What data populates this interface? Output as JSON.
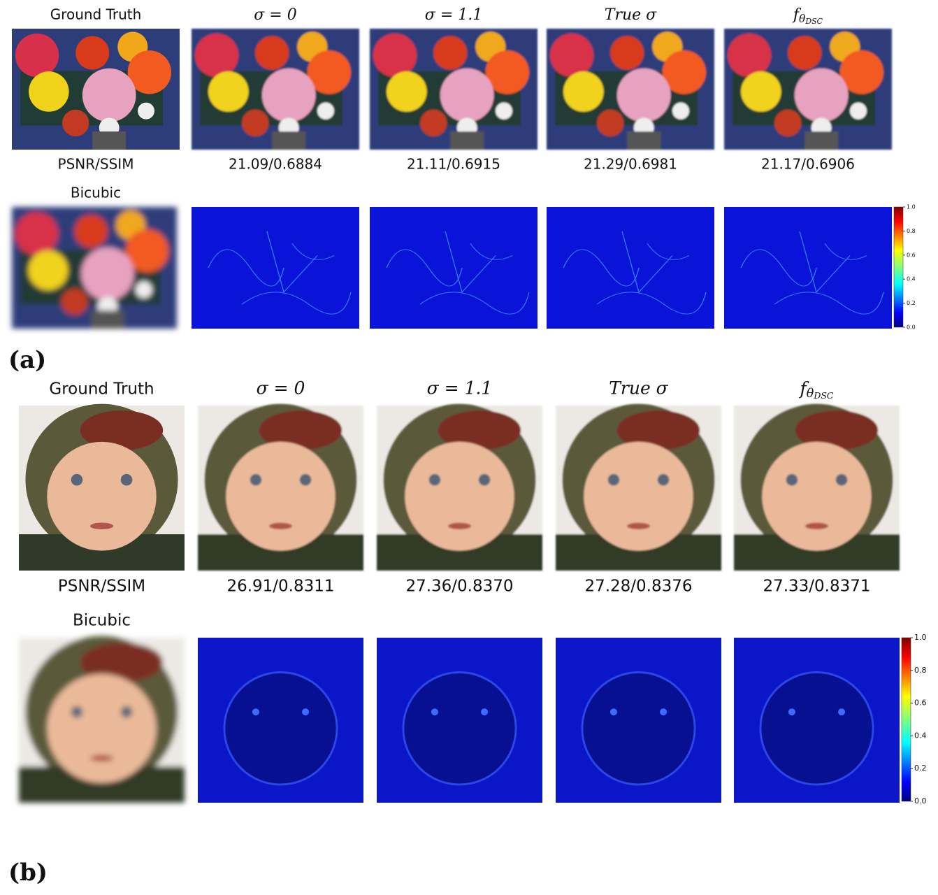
{
  "panels": [
    {
      "label": "(a)",
      "headers": [
        "Ground Truth",
        "σ = 0",
        "σ = 1.1",
        "True σ",
        {
          "base": "f",
          "sub": "θ",
          "subsub": "DSC"
        }
      ],
      "metric_label": "PSNR/SSIM",
      "scores": [
        "21.09/0.6884",
        "21.11/0.6915",
        "21.29/0.6981",
        "21.17/0.6906"
      ],
      "lr_label": "Bicubic",
      "colorbar_ticks": [
        "1.0",
        "0.8",
        "0.6",
        "0.4",
        "0.2",
        "0.0"
      ]
    },
    {
      "label": "(b)",
      "headers": [
        "Ground Truth",
        "σ = 0",
        "σ = 1.1",
        "True σ",
        {
          "base": "f",
          "sub": "θ",
          "subsub": "DSC"
        }
      ],
      "metric_label": "PSNR/SSIM",
      "scores": [
        "26.91/0.8311",
        "27.36/0.8370",
        "27.28/0.8376",
        "27.33/0.8371"
      ],
      "lr_label": "Bicubic",
      "colorbar_ticks": [
        "1.0",
        "0.8",
        "0.6",
        "0.4",
        "0.2",
        "0.0"
      ]
    }
  ]
}
